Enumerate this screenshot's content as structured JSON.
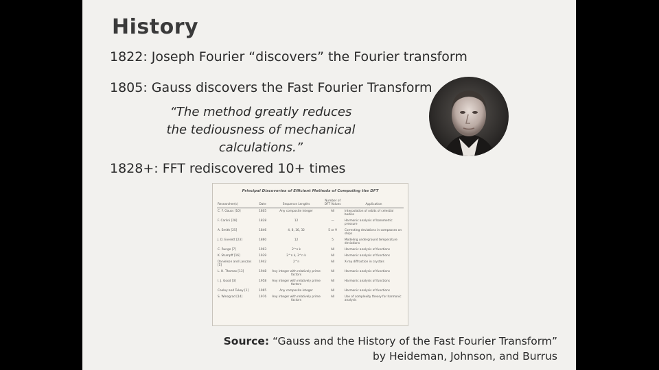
{
  "slide": {
    "title": "History",
    "line1": "1822: Joseph Fourier “discovers” the Fourier transform",
    "line2": "1805: Gauss discovers the Fast Fourier Transform",
    "quote": "“The method greatly reduces the tediousness of mechanical calculations.”",
    "line3": "1828+: FFT rediscovered 10+ times",
    "source_label": "Source:",
    "source_title": "“Gauss and the History of the Fast Fourier Transform”",
    "source_authors": "by Heideman, Johnson, and Burrus"
  },
  "table": {
    "title": "Principal Discoveries of Efficient Methods of Computing the DFT",
    "headers": [
      "Researcher(s)",
      "Date",
      "Sequence Lengths",
      "Number of DFT Values",
      "Application"
    ],
    "rows": [
      [
        "C. F. Gauss [10]",
        "1805",
        "Any composite integer",
        "All",
        "Interpolation of orbits of celestial bodies"
      ],
      [
        "F. Carlini [28]",
        "1828",
        "12",
        "—",
        "Harmonic analysis of barometric pressure"
      ],
      [
        "A. Smith [25]",
        "1846",
        "4, 8, 16, 32",
        "5 or 9",
        "Correcting deviations in compasses on ships"
      ],
      [
        "J. D. Everett [23]",
        "1860",
        "12",
        "5",
        "Modeling underground temperature deviations"
      ],
      [
        "C. Runge [7]",
        "1903",
        "2^n k",
        "All",
        "Harmonic analysis of functions"
      ],
      [
        "K. Stumpff [16]",
        "1939",
        "2^n k, 3^n k",
        "All",
        "Harmonic analysis of functions"
      ],
      [
        "Danielson and Lanczos [5]",
        "1942",
        "2^n",
        "All",
        "X-ray diffraction in crystals"
      ],
      [
        "L. H. Thomas [13]",
        "1948",
        "Any integer with relatively prime factors",
        "All",
        "Harmonic analysis of functions"
      ],
      [
        "I. J. Good [3]",
        "1958",
        "Any integer with relatively prime factors",
        "All",
        "Harmonic analysis of functions"
      ],
      [
        "Cooley and Tukey [1]",
        "1965",
        "Any composite integer",
        "All",
        "Harmonic analysis of functions"
      ],
      [
        "S. Winograd [14]",
        "1976",
        "Any integer with relatively prime factors",
        "All",
        "Use of complexity theory for harmonic analysis"
      ]
    ]
  },
  "colors": {
    "background": "#000000",
    "slide": "#f2f1ee",
    "text": "#2a2a2a"
  },
  "icons": {
    "portrait": "gauss-portrait-icon"
  }
}
